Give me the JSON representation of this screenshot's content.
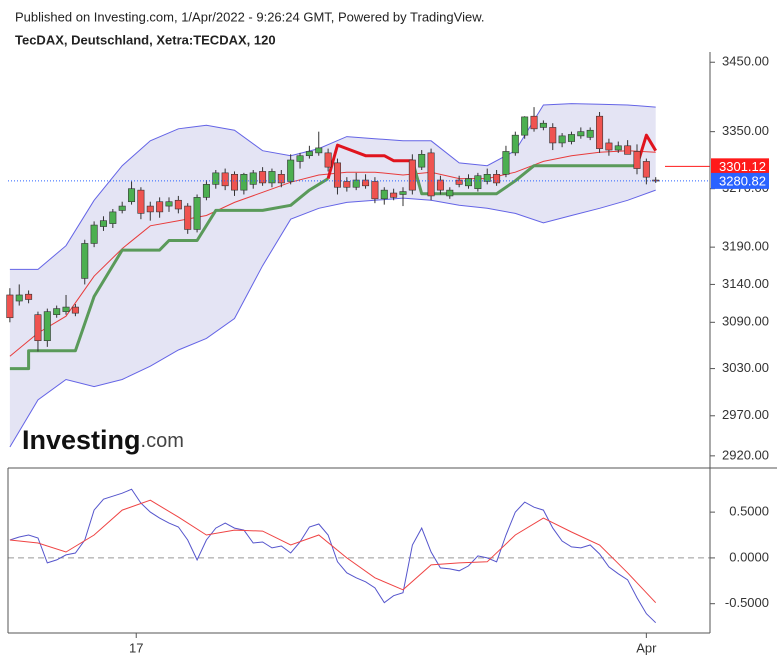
{
  "header": {
    "published": "Published on Investing.com, 1/Apr/2022 - 9:26:24 GMT, Powered by TradingView.",
    "title": "TecDAX, Deutschland, Xetra:TECDAX, 120"
  },
  "logo": {
    "brand": "Investing",
    "suffix": ".com"
  },
  "chart_data": [
    {
      "type": "candlestick",
      "log_scale": true,
      "xlim": [
        -0.2,
        74.8
      ],
      "ylim": [
        2905,
        3465
      ],
      "yticks": [
        {
          "value": 3450,
          "label": "3450.00"
        },
        {
          "value": 3350,
          "label": "3350.00"
        },
        {
          "value": 3270,
          "label": "3270.00"
        },
        {
          "value": 3190,
          "label": "3190.00"
        },
        {
          "value": 3140,
          "label": "3140.00"
        },
        {
          "value": 3090,
          "label": "3090.00"
        },
        {
          "value": 3030,
          "label": "3030.00"
        },
        {
          "value": 2970,
          "label": "2970.00"
        },
        {
          "value": 2920,
          "label": "2920.00"
        }
      ],
      "up_color": "#4caf50",
      "down_color": "#ef5350",
      "border_color": "#333333",
      "open": [
        3126,
        3118,
        3127,
        3100,
        3066,
        3100,
        3104,
        3110,
        3148,
        3195,
        3218,
        3222,
        3240,
        3252,
        3268,
        3246,
        3252,
        3246,
        3254,
        3246,
        3214,
        3258,
        3276,
        3292,
        3290,
        3268,
        3276,
        3294,
        3278,
        3290,
        3280,
        3308,
        3316,
        3320,
        3320,
        3306,
        3280,
        3272,
        3282,
        3280,
        3256,
        3264,
        3262,
        3310,
        3300,
        3320,
        3282,
        3260,
        3282,
        3274,
        3270,
        3280,
        3290,
        3290,
        3320,
        3345,
        3372,
        3356,
        3356,
        3334,
        3336,
        3344,
        3342,
        3372,
        3334,
        3324,
        3330,
        3322,
        3308,
        3282
      ],
      "high": [
        3135,
        3140,
        3132,
        3104,
        3108,
        3112,
        3126,
        3114,
        3200,
        3225,
        3232,
        3242,
        3252,
        3280,
        3272,
        3252,
        3258,
        3258,
        3260,
        3250,
        3262,
        3282,
        3296,
        3298,
        3294,
        3292,
        3296,
        3300,
        3298,
        3296,
        3318,
        3320,
        3330,
        3350,
        3326,
        3312,
        3286,
        3292,
        3290,
        3286,
        3272,
        3270,
        3272,
        3318,
        3324,
        3326,
        3288,
        3272,
        3288,
        3290,
        3292,
        3298,
        3296,
        3330,
        3350,
        3372,
        3385,
        3366,
        3362,
        3348,
        3350,
        3356,
        3356,
        3378,
        3340,
        3336,
        3338,
        3332,
        3312,
        3286
      ],
      "low": [
        3090,
        3112,
        3115,
        3052,
        3058,
        3096,
        3100,
        3098,
        3140,
        3190,
        3212,
        3216,
        3236,
        3248,
        3228,
        3226,
        3230,
        3238,
        3236,
        3208,
        3210,
        3254,
        3270,
        3268,
        3260,
        3262,
        3270,
        3274,
        3272,
        3272,
        3276,
        3298,
        3312,
        3316,
        3294,
        3262,
        3266,
        3268,
        3270,
        3250,
        3248,
        3254,
        3246,
        3262,
        3296,
        3254,
        3262,
        3256,
        3272,
        3270,
        3266,
        3276,
        3274,
        3286,
        3316,
        3340,
        3350,
        3352,
        3324,
        3328,
        3332,
        3340,
        3338,
        3320,
        3316,
        3320,
        3318,
        3290,
        3276,
        3278
      ],
      "close": [
        3096,
        3126,
        3120,
        3066,
        3104,
        3108,
        3110,
        3102,
        3195,
        3220,
        3226,
        3238,
        3246,
        3270,
        3236,
        3238,
        3238,
        3252,
        3242,
        3214,
        3258,
        3276,
        3292,
        3274,
        3268,
        3290,
        3292,
        3278,
        3294,
        3278,
        3310,
        3316,
        3322,
        3327,
        3300,
        3272,
        3272,
        3282,
        3274,
        3256,
        3268,
        3258,
        3266,
        3268,
        3318,
        3260,
        3268,
        3268,
        3276,
        3284,
        3288,
        3290,
        3278,
        3322,
        3345,
        3371,
        3354,
        3362,
        3334,
        3344,
        3346,
        3350,
        3352,
        3326,
        3324,
        3330,
        3318,
        3298,
        3286,
        3281
      ],
      "bands": {
        "x": [
          0,
          3,
          6,
          9,
          12,
          15,
          18,
          21,
          24,
          27,
          30,
          33,
          36,
          39,
          42,
          45,
          48,
          51,
          54,
          57,
          60,
          63,
          66,
          69
        ],
        "upper": [
          3160,
          3160,
          3192,
          3254,
          3302,
          3337,
          3354,
          3359,
          3352,
          3323,
          3316,
          3326,
          3343,
          3340,
          3337,
          3337,
          3306,
          3302,
          3323,
          3388,
          3390,
          3389,
          3388,
          3385
        ],
        "lower": [
          2931,
          2990,
          3016,
          3007,
          3016,
          3033,
          3054,
          3069,
          3095,
          3165,
          3228,
          3243,
          3251,
          3254,
          3257,
          3254,
          3247,
          3243,
          3236,
          3223,
          3233,
          3243,
          3254,
          3268
        ],
        "middle": [
          3046,
          3076,
          3098,
          3151,
          3188,
          3219,
          3226,
          3233,
          3251,
          3265,
          3279,
          3289,
          3293,
          3293,
          3289,
          3293,
          3284,
          3284,
          3293,
          3308,
          3316,
          3321,
          3323,
          3321
        ],
        "line_color": "#6464e6",
        "fill": "#e4e4f4",
        "middle_color": "#e83b3b"
      },
      "supertrend": [
        {
          "color": "#5a9a5a",
          "x": [
            0,
            2,
            2,
            7,
            9,
            12,
            16,
            17,
            20,
            22,
            27,
            30,
            32,
            34,
            38,
            43,
            44,
            52,
            54,
            56,
            67
          ],
          "values": [
            3030,
            3030,
            3053,
            3053,
            3124,
            3186,
            3186,
            3199,
            3199,
            3240,
            3240,
            3247,
            3268,
            3284,
            null,
            3309,
            3263,
            3263,
            3281,
            3302,
            3302
          ]
        },
        {
          "color": "#e0141e",
          "x": [
            34,
            35,
            38,
            40,
            41,
            43,
            55,
            67,
            68,
            69
          ],
          "values": [
            3284,
            3331,
            3316,
            3316,
            3309,
            3309,
            null,
            3302,
            3345,
            3323
          ]
        }
      ],
      "price_markers": [
        {
          "value": 3301.12,
          "color": "#ff1a1a",
          "style": "short"
        },
        {
          "value": 3280.82,
          "color": "#2962ff",
          "style": "dotted"
        }
      ]
    },
    {
      "type": "line",
      "xlim": [
        -0.2,
        74.8
      ],
      "ylim": [
        -0.82,
        0.96
      ],
      "yticks": [
        {
          "value": 0.5,
          "label": "0.5000"
        },
        {
          "value": 0,
          "label": "0.0000"
        },
        {
          "value": -0.5,
          "label": "-0.5000"
        }
      ],
      "xticks": [
        {
          "value": 13.5,
          "label": "17"
        },
        {
          "value": 68,
          "label": "Apr"
        }
      ],
      "zero_line": true,
      "series": [
        {
          "color": "#5555cc",
          "values": [
            0.196,
            0.228,
            0.25,
            0.217,
            -0.054,
            -0.022,
            0.033,
            0.054,
            0.196,
            0.522,
            0.641,
            0.674,
            0.707,
            0.75,
            0.598,
            0.5,
            0.435,
            0.38,
            0.337,
            0.196,
            -0.022,
            0.196,
            0.326,
            0.38,
            0.326,
            0.304,
            0.163,
            0.174,
            0.109,
            0.13,
            0.054,
            0.174,
            0.337,
            0.37,
            0.25,
            -0.043,
            -0.163,
            -0.217,
            -0.261,
            -0.326,
            -0.489,
            -0.413,
            -0.38,
            0.141,
            0.326,
            0.065,
            -0.109,
            -0.12,
            -0.141,
            -0.087,
            0.022,
            0,
            -0.043,
            0.25,
            0.5,
            0.609,
            0.554,
            0.522,
            0.326,
            0.185,
            0.12,
            0.109,
            0.141,
            0.043,
            -0.098,
            -0.174,
            -0.239,
            -0.435,
            -0.609,
            -0.707
          ]
        },
        {
          "color": "#ef4444",
          "x": [
            0,
            3,
            6,
            9,
            12,
            15,
            18,
            21,
            24,
            27,
            30,
            33,
            36,
            39,
            42,
            45,
            48,
            51,
            54,
            57,
            60,
            63,
            66,
            69
          ],
          "values": [
            0.196,
            0.163,
            0.065,
            0.25,
            0.522,
            0.63,
            0.446,
            0.25,
            0.304,
            0.293,
            0.141,
            0.25,
            0,
            -0.217,
            -0.348,
            -0.076,
            -0.054,
            -0.043,
            0.25,
            0.435,
            0.283,
            0.141,
            -0.163,
            -0.489
          ]
        }
      ]
    }
  ]
}
